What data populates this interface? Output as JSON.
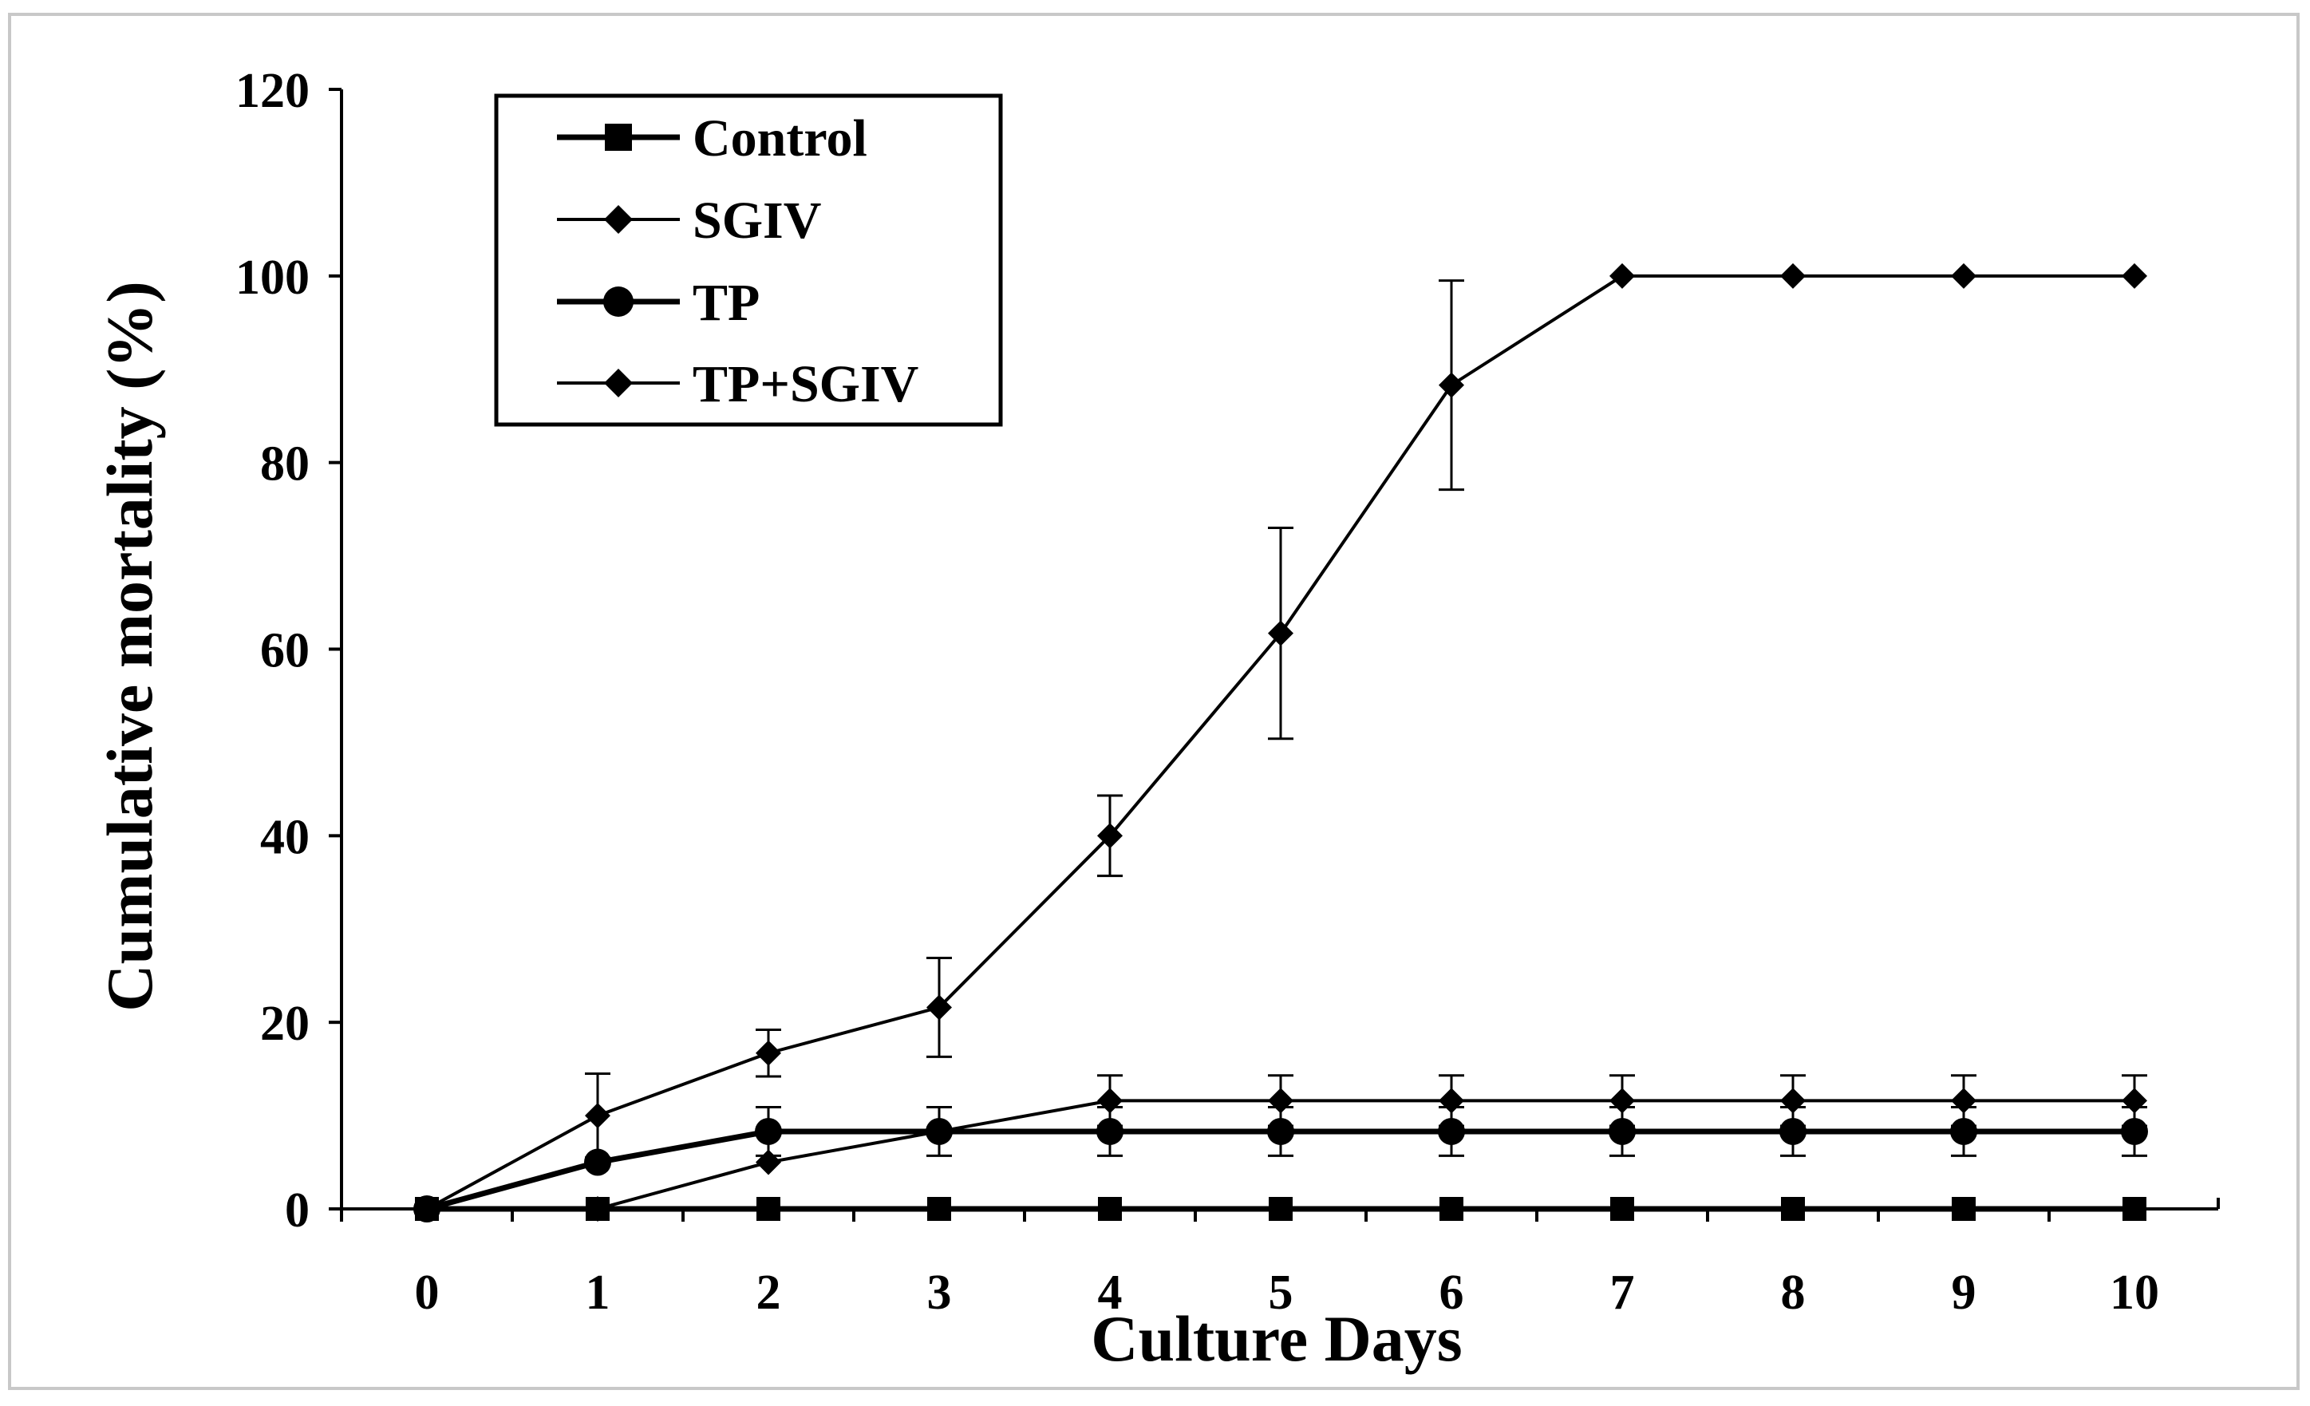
{
  "chart_data": {
    "type": "line",
    "title": "",
    "xlabel": "Culture Days",
    "ylabel": "Cumulative mortality (%)",
    "x": [
      0,
      1,
      2,
      3,
      4,
      5,
      6,
      7,
      8,
      9,
      10
    ],
    "x_ticks": [
      "0",
      "1",
      "2",
      "3",
      "4",
      "5",
      "6",
      "7",
      "8",
      "9",
      "10"
    ],
    "xlim": [
      0,
      10
    ],
    "ylim": [
      0,
      120
    ],
    "y_ticks": [
      "0",
      "20",
      "40",
      "60",
      "80",
      "100",
      "120"
    ],
    "grid": false,
    "legend_position": "top-left",
    "series": [
      {
        "name": "Control",
        "marker": "square",
        "values": [
          0,
          0,
          0,
          0,
          0,
          0,
          0,
          0,
          0,
          0,
          0
        ],
        "errors": [
          0,
          0,
          0,
          0,
          0,
          0,
          0,
          0,
          0,
          0,
          0
        ]
      },
      {
        "name": "SGIV",
        "marker": "diamond",
        "values": [
          0,
          10,
          16.7,
          21.6,
          40,
          61.7,
          88.3,
          100,
          100,
          100,
          100
        ],
        "errors": [
          0,
          4.5,
          2.5,
          5.3,
          4.3,
          11.3,
          11.2,
          0,
          0,
          0,
          0
        ]
      },
      {
        "name": "TP",
        "marker": "circle",
        "values": [
          0,
          5,
          8.3,
          8.3,
          8.3,
          8.3,
          8.3,
          8.3,
          8.3,
          8.3,
          8.3
        ],
        "errors": [
          0,
          0,
          2.6,
          2.6,
          2.6,
          2.6,
          2.6,
          2.6,
          2.6,
          2.6,
          2.6
        ]
      },
      {
        "name": "TP+SGIV",
        "marker": "diamond",
        "values": [
          0,
          0,
          5,
          8.3,
          11.6,
          11.6,
          11.6,
          11.6,
          11.6,
          11.6,
          11.6
        ],
        "errors": [
          0,
          0,
          0,
          0,
          2.7,
          2.7,
          2.7,
          2.7,
          2.7,
          2.7,
          2.7
        ]
      }
    ]
  }
}
